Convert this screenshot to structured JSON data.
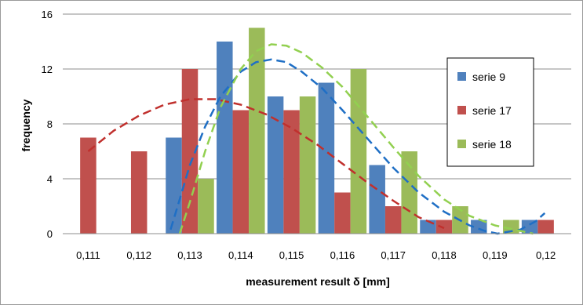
{
  "chart_data": {
    "type": "bar",
    "categories": [
      "0,111",
      "0,112",
      "0,113",
      "0,114",
      "0,115",
      "0,116",
      "0,117",
      "0,118",
      "0,119",
      "0,12"
    ],
    "series": [
      {
        "name": "serie 9",
        "color": "#4f81bd",
        "values": [
          0,
          0,
          7,
          14,
          10,
          11,
          5,
          1,
          1,
          1
        ]
      },
      {
        "name": "serie 17",
        "color": "#c0504d",
        "values": [
          7,
          6,
          12,
          9,
          9,
          3,
          2,
          1,
          0,
          1
        ]
      },
      {
        "name": "serie 18",
        "color": "#9bbb59",
        "values": [
          0,
          0,
          4,
          15,
          10,
          12,
          6,
          2,
          1,
          0
        ]
      }
    ],
    "fit_curves": [
      {
        "series": "serie 9",
        "color": "#1f6fc5",
        "x": [
          0.11262,
          0.1128,
          0.113,
          0.1133,
          0.1136,
          0.114,
          0.1143,
          0.1146,
          0.1149,
          0.1152,
          0.1156,
          0.116,
          0.1165,
          0.117,
          0.1175,
          0.118,
          0.1185,
          0.1188,
          0.11905,
          0.1195,
          0.1198,
          0.11998
        ],
        "y": [
          0.3,
          2.5,
          5.0,
          7.8,
          10.0,
          11.8,
          12.5,
          12.7,
          12.5,
          11.8,
          10.6,
          9.0,
          6.9,
          4.8,
          3.0,
          1.6,
          0.6,
          0.2,
          0.0,
          0.3,
          0.9,
          1.5
        ]
      },
      {
        "series": "serie 17",
        "color": "#c0302d",
        "x": [
          0.111,
          0.1115,
          0.112,
          0.1125,
          0.113,
          0.1135,
          0.114,
          0.1145,
          0.115,
          0.1155,
          0.116,
          0.1165,
          0.117,
          0.1175,
          0.118
        ],
        "y": [
          6.0,
          7.5,
          8.6,
          9.4,
          9.8,
          9.8,
          9.4,
          8.7,
          7.7,
          6.5,
          5.1,
          3.7,
          2.4,
          1.2,
          0.4
        ]
      },
      {
        "series": "serie 18",
        "color": "#92d050",
        "x": [
          0.1128,
          0.113,
          0.1133,
          0.1136,
          0.114,
          0.1143,
          0.1146,
          0.1149,
          0.1152,
          0.1156,
          0.116,
          0.1165,
          0.117,
          0.1175,
          0.118,
          0.1185,
          0.119,
          0.1195,
          0.11975
        ],
        "y": [
          0.0,
          2.3,
          6.0,
          9.2,
          12.0,
          13.3,
          13.8,
          13.7,
          13.2,
          12.1,
          10.7,
          8.5,
          6.3,
          4.2,
          2.5,
          1.3,
          0.6,
          0.2,
          0.0
        ]
      }
    ],
    "xlabel": "measurement result δ [mm]",
    "ylabel": "frequency",
    "ylim": [
      0,
      16
    ],
    "yticks": [
      "0",
      "4",
      "8",
      "12",
      "16"
    ],
    "grid": "horizontal",
    "legend_position": "right"
  }
}
